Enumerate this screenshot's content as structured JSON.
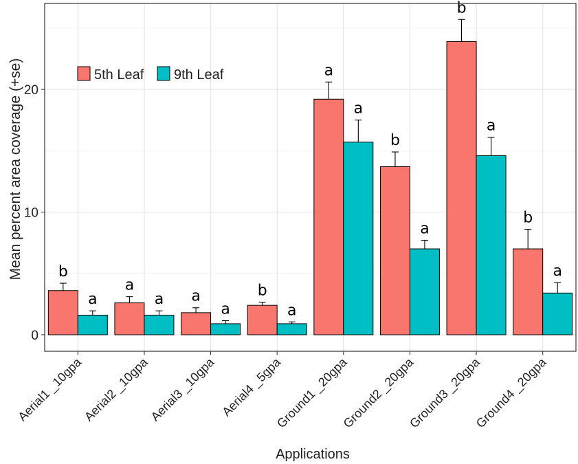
{
  "chart_data": {
    "type": "bar",
    "title": "",
    "xlabel": "Applications",
    "ylabel": "Mean percent area coverage (+se)",
    "ylim": [
      -1.4,
      27
    ],
    "yticks": [
      0,
      10,
      20
    ],
    "grid": true,
    "legend_position": "top-left",
    "categories": [
      "Aerial1 _10gpa",
      "Aerial2 _10gpa",
      "Aerial3 _10gpa",
      "Aerial4 _5gpa",
      "Ground1 _20gpa",
      "Ground2 _20gpa",
      "Ground3 _20gpa",
      "Ground4 _20gpa"
    ],
    "series": [
      {
        "name": "5th Leaf",
        "color": "#F8766D",
        "values": [
          3.6,
          2.6,
          1.8,
          2.4,
          19.2,
          13.7,
          23.9,
          7.0
        ],
        "se": [
          0.6,
          0.5,
          0.4,
          0.25,
          1.4,
          1.2,
          1.8,
          1.6
        ],
        "letters": [
          "b",
          "a",
          "a",
          "b",
          "a",
          "b",
          "b",
          "b"
        ]
      },
      {
        "name": "9th Leaf",
        "color": "#00BFC4",
        "values": [
          1.6,
          1.6,
          0.9,
          0.9,
          15.7,
          7.0,
          14.6,
          3.4
        ],
        "se": [
          0.35,
          0.35,
          0.25,
          0.15,
          1.8,
          0.7,
          1.5,
          0.85
        ],
        "letters": [
          "a",
          "a",
          "a",
          "a",
          "a",
          "a",
          "a",
          "a"
        ]
      }
    ]
  }
}
